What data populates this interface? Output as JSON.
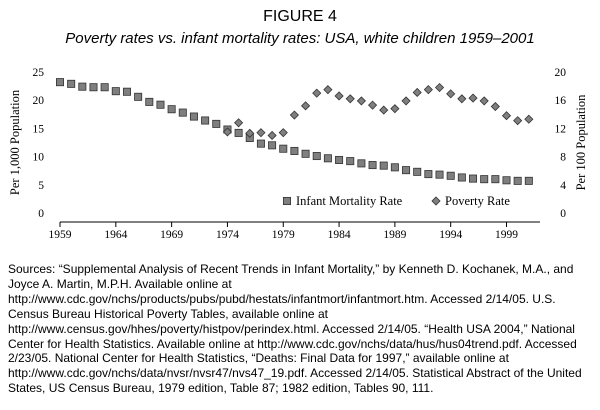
{
  "figure": {
    "label": "FIGURE 4",
    "title": "Poverty rates vs. infant mortality rates: USA, white children 1959–2001",
    "sources": "Sources: “Supplemental Analysis of Recent Trends in Infant Mortality,” by Kenneth D. Kochanek, M.A., and Joyce A. Martin, M.P.H.  Available online at http://www.cdc.gov/nchs/products/pubs/pubd/hestats/infantmort/infantmort.htm. Accessed 2/14/05. U.S. Census Bureau Historical Poverty Tables, available online at http://www.census.gov/hhes/poverty/histpov/perindex.html. Accessed 2/14/05. “Health USA 2004,”  National Center for Health Statistics.  Available online at http://www.cdc.gov/nchs/data/hus/hus04trend.pdf. Accessed 2/23/05. National Center for Health Statistics, “Deaths: Final Data for 1997,” available online at http://www.cdc.gov/nchs/data/nvsr/nvsr47/nvs47_19.pdf. Accessed 2/14/05. Statistical Abstract of the United States, US Census Bureau, 1979 edition, Table 87; 1982 edition, Tables 90, 111."
  },
  "chart_data": {
    "type": "line",
    "title": "Poverty rates vs. infant mortality rates: USA, white children 1959–2001",
    "xlabel": "",
    "ylabel": "Per 1,000 Population",
    "y2label": "Per 100 Population",
    "xlim": [
      1959,
      2002
    ],
    "ylim": [
      0,
      25
    ],
    "y2lim": [
      0,
      20
    ],
    "xticks": [
      1959,
      1964,
      1969,
      1974,
      1979,
      1984,
      1989,
      1994,
      1999
    ],
    "yticks": [
      0,
      5,
      10,
      15,
      20,
      25
    ],
    "y2ticks": [
      0,
      4,
      8,
      12,
      16,
      20
    ],
    "grid": false,
    "legend_position": "bottom-right",
    "series": [
      {
        "name": "Infant Mortality Rate",
        "axis": "left",
        "marker": "square",
        "color": "#7f7f7f",
        "x": [
          1959,
          1960,
          1961,
          1962,
          1963,
          1964,
          1965,
          1966,
          1967,
          1968,
          1969,
          1970,
          1971,
          1972,
          1973,
          1974,
          1975,
          1976,
          1977,
          1978,
          1979,
          1980,
          1981,
          1982,
          1983,
          1984,
          1985,
          1986,
          1987,
          1988,
          1989,
          1990,
          1991,
          1992,
          1993,
          1994,
          1995,
          1996,
          1997,
          1998,
          1999,
          2000,
          2001
        ],
        "y": [
          23.2,
          22.9,
          22.4,
          22.3,
          22.3,
          21.6,
          21.5,
          20.6,
          19.7,
          19.2,
          18.4,
          17.8,
          17.1,
          16.4,
          15.8,
          14.8,
          14.2,
          13.3,
          12.3,
          12.0,
          11.4,
          11.0,
          10.5,
          10.1,
          9.7,
          9.4,
          9.2,
          8.8,
          8.5,
          8.4,
          8.1,
          7.6,
          7.3,
          6.9,
          6.8,
          6.6,
          6.3,
          6.1,
          6.0,
          6.0,
          5.8,
          5.7,
          5.7
        ]
      },
      {
        "name": "Poverty Rate",
        "axis": "right",
        "marker": "diamond",
        "color": "#7f7f7f",
        "x": [
          1974,
          1975,
          1976,
          1977,
          1978,
          1979,
          1980,
          1981,
          1982,
          1983,
          1984,
          1985,
          1986,
          1987,
          1988,
          1989,
          1990,
          1991,
          1992,
          1993,
          1994,
          1995,
          1996,
          1997,
          1998,
          1999,
          2000,
          2001
        ],
        "y": [
          11.5,
          12.8,
          11.3,
          11.4,
          11.0,
          11.4,
          13.9,
          15.2,
          17.0,
          17.5,
          16.6,
          16.2,
          15.9,
          15.3,
          14.6,
          14.8,
          15.9,
          17.1,
          17.5,
          17.8,
          16.9,
          16.2,
          16.3,
          15.9,
          15.1,
          13.8,
          13.1,
          13.3
        ]
      }
    ]
  }
}
